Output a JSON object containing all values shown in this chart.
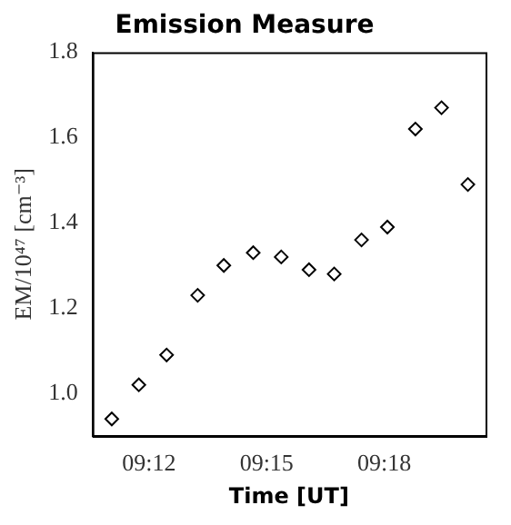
{
  "chart_data": {
    "type": "scatter",
    "title": "Emission Measure",
    "xlabel": "Time [UT]",
    "ylabel": "EM/10⁴⁷ [cm⁻³]",
    "x": [
      9.1842,
      9.1957,
      9.2075,
      9.2207,
      9.2318,
      9.2443,
      9.2562,
      9.268,
      9.2787,
      9.2903,
      9.3013,
      9.3132,
      9.3243,
      9.3355
    ],
    "series": [
      {
        "color": "#000000",
        "values": [
          0.94,
          1.02,
          1.09,
          1.23,
          1.3,
          1.33,
          1.32,
          1.29,
          1.28,
          1.36,
          1.39,
          1.62,
          1.67,
          1.49
        ]
      }
    ],
    "xlim": [
      9.176,
      9.343
    ],
    "xticks": [
      {
        "value": 9.2,
        "label": "09:12"
      },
      {
        "value": 9.25,
        "label": "09:15"
      },
      {
        "value": 9.3,
        "label": "09:18"
      }
    ],
    "ylim": [
      0.9,
      1.8
    ],
    "yticks": [
      {
        "value": 1,
        "label": "1.0"
      },
      {
        "value": 1.2,
        "label": "1.2"
      },
      {
        "value": 1.4,
        "label": "1.4"
      },
      {
        "value": 1.6,
        "label": "1.6"
      },
      {
        "value": 1.8,
        "label": "1.8"
      }
    ],
    "grid": false,
    "legend": false,
    "marker": "diamond"
  }
}
